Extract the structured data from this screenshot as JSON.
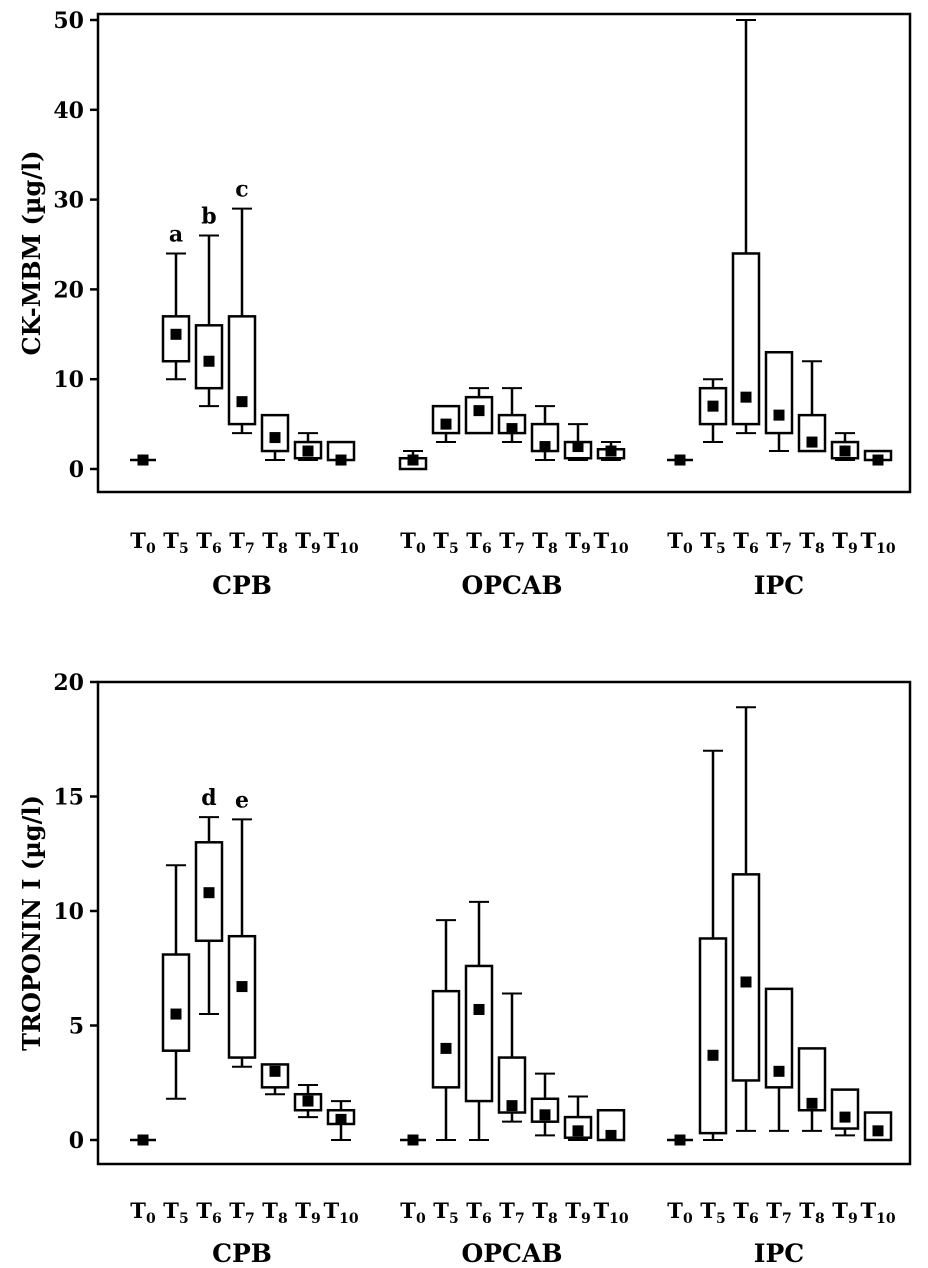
{
  "chart_data": [
    {
      "type": "box",
      "title": "",
      "ylabel": "CK-MBM  (µg/l)",
      "ylim": [
        0,
        50
      ],
      "yticks": [
        "0",
        "10",
        "20",
        "30",
        "40",
        "50"
      ],
      "ytick_values": [
        0,
        10,
        20,
        30,
        40,
        50
      ],
      "groups": [
        {
          "name": "CPB",
          "timepoints": [
            {
              "t": "0",
              "median": 1,
              "q1": 1,
              "q3": 1,
              "min": 1,
              "max": 1
            },
            {
              "t": "5",
              "median": 15,
              "q1": 12,
              "q3": 17,
              "min": 10,
              "max": 24,
              "annotation": "a"
            },
            {
              "t": "6",
              "median": 12,
              "q1": 9,
              "q3": 16,
              "min": 7,
              "max": 26,
              "annotation": "b"
            },
            {
              "t": "7",
              "median": 7.5,
              "q1": 5,
              "q3": 17,
              "min": 4,
              "max": 29,
              "annotation": "c"
            },
            {
              "t": "8",
              "median": 3.5,
              "q1": 2,
              "q3": 6,
              "min": 1,
              "max": 6
            },
            {
              "t": "9",
              "median": 2,
              "q1": 1.2,
              "q3": 3,
              "min": 1,
              "max": 4
            },
            {
              "t": "10",
              "median": 1,
              "q1": 1,
              "q3": 3,
              "min": 1,
              "max": 3
            }
          ]
        },
        {
          "name": "OPCAB",
          "timepoints": [
            {
              "t": "0",
              "median": 1,
              "q1": 0,
              "q3": 1.2,
              "min": 0,
              "max": 2
            },
            {
              "t": "5",
              "median": 5,
              "q1": 4,
              "q3": 7,
              "min": 3,
              "max": 7
            },
            {
              "t": "6",
              "median": 6.5,
              "q1": 4,
              "q3": 8,
              "min": 4,
              "max": 9
            },
            {
              "t": "7",
              "median": 4.5,
              "q1": 4,
              "q3": 6,
              "min": 3,
              "max": 9
            },
            {
              "t": "8",
              "median": 2.5,
              "q1": 2,
              "q3": 5,
              "min": 1,
              "max": 7
            },
            {
              "t": "9",
              "median": 2.5,
              "q1": 1.2,
              "q3": 3,
              "min": 1,
              "max": 5
            },
            {
              "t": "10",
              "median": 2,
              "q1": 1.2,
              "q3": 2.2,
              "min": 1,
              "max": 3
            }
          ]
        },
        {
          "name": "IPC",
          "timepoints": [
            {
              "t": "0",
              "median": 1,
              "q1": 1,
              "q3": 1,
              "min": 1,
              "max": 1
            },
            {
              "t": "5",
              "median": 7,
              "q1": 5,
              "q3": 9,
              "min": 3,
              "max": 10
            },
            {
              "t": "6",
              "median": 8,
              "q1": 5,
              "q3": 24,
              "min": 4,
              "max": 50
            },
            {
              "t": "7",
              "median": 6,
              "q1": 4,
              "q3": 13,
              "min": 2,
              "max": 13
            },
            {
              "t": "8",
              "median": 3,
              "q1": 2,
              "q3": 6,
              "min": 2,
              "max": 12
            },
            {
              "t": "9",
              "median": 2,
              "q1": 1.2,
              "q3": 3,
              "min": 1,
              "max": 4
            },
            {
              "t": "10",
              "median": 1,
              "q1": 1,
              "q3": 2,
              "min": 1,
              "max": 2
            }
          ]
        }
      ]
    },
    {
      "type": "box",
      "title": "",
      "ylabel": "TROPONIN  I  (µg/l)",
      "ylim": [
        0,
        20
      ],
      "yticks": [
        "0",
        "5",
        "10",
        "15",
        "20"
      ],
      "ytick_values": [
        0,
        5,
        10,
        15,
        20
      ],
      "groups": [
        {
          "name": "CPB",
          "timepoints": [
            {
              "t": "0",
              "median": 0,
              "q1": 0,
              "q3": 0,
              "min": 0,
              "max": 0
            },
            {
              "t": "5",
              "median": 5.5,
              "q1": 3.9,
              "q3": 8.1,
              "min": 1.8,
              "max": 12
            },
            {
              "t": "6",
              "median": 10.8,
              "q1": 8.7,
              "q3": 13,
              "min": 5.5,
              "max": 14.1,
              "annotation": "d"
            },
            {
              "t": "7",
              "median": 6.7,
              "q1": 3.6,
              "q3": 8.9,
              "min": 3.2,
              "max": 14,
              "annotation": "e"
            },
            {
              "t": "8",
              "median": 3,
              "q1": 2.3,
              "q3": 3.3,
              "min": 2,
              "max": 3.3
            },
            {
              "t": "9",
              "median": 1.7,
              "q1": 1.3,
              "q3": 2,
              "min": 1,
              "max": 2.4
            },
            {
              "t": "10",
              "median": 0.9,
              "q1": 0.7,
              "q3": 1.3,
              "min": 0,
              "max": 1.7
            }
          ]
        },
        {
          "name": "OPCAB",
          "timepoints": [
            {
              "t": "0",
              "median": 0,
              "q1": 0,
              "q3": 0,
              "min": 0,
              "max": 0
            },
            {
              "t": "5",
              "median": 4,
              "q1": 2.3,
              "q3": 6.5,
              "min": 0,
              "max": 9.6
            },
            {
              "t": "6",
              "median": 5.7,
              "q1": 1.7,
              "q3": 7.6,
              "min": 0,
              "max": 10.4
            },
            {
              "t": "7",
              "median": 1.5,
              "q1": 1.2,
              "q3": 3.6,
              "min": 0.8,
              "max": 6.4
            },
            {
              "t": "8",
              "median": 1.1,
              "q1": 0.8,
              "q3": 1.8,
              "min": 0.2,
              "max": 2.9
            },
            {
              "t": "9",
              "median": 0.4,
              "q1": 0.1,
              "q3": 1,
              "min": 0,
              "max": 1.9
            },
            {
              "t": "10",
              "median": 0.2,
              "q1": 0,
              "q3": 1.3,
              "min": 0,
              "max": 1.3
            }
          ]
        },
        {
          "name": "IPC",
          "timepoints": [
            {
              "t": "0",
              "median": 0,
              "q1": 0,
              "q3": 0,
              "min": 0,
              "max": 0
            },
            {
              "t": "5",
              "median": 3.7,
              "q1": 0.3,
              "q3": 8.8,
              "min": 0,
              "max": 17
            },
            {
              "t": "6",
              "median": 6.9,
              "q1": 2.6,
              "q3": 11.6,
              "min": 0.4,
              "max": 18.9
            },
            {
              "t": "7",
              "median": 3,
              "q1": 2.3,
              "q3": 6.6,
              "min": 0.4,
              "max": 6.6
            },
            {
              "t": "8",
              "median": 1.6,
              "q1": 1.3,
              "q3": 4,
              "min": 0.4,
              "max": 4
            },
            {
              "t": "9",
              "median": 1,
              "q1": 0.5,
              "q3": 2.2,
              "min": 0.2,
              "max": 2.2
            },
            {
              "t": "10",
              "median": 0.4,
              "q1": 0,
              "q3": 1.2,
              "min": 0,
              "max": 1.2
            }
          ]
        }
      ]
    }
  ]
}
